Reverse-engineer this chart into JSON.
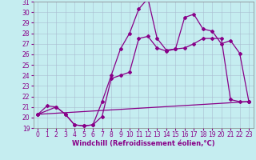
{
  "xlabel": "Windchill (Refroidissement éolien,°C)",
  "xlim": [
    -0.5,
    23.5
  ],
  "ylim": [
    19,
    31
  ],
  "xticks": [
    0,
    1,
    2,
    3,
    4,
    5,
    6,
    7,
    8,
    9,
    10,
    11,
    12,
    13,
    14,
    15,
    16,
    17,
    18,
    19,
    20,
    21,
    22,
    23
  ],
  "yticks": [
    19,
    20,
    21,
    22,
    23,
    24,
    25,
    26,
    27,
    28,
    29,
    30,
    31
  ],
  "bg_color": "#c5edf0",
  "grid_color": "#aabbd0",
  "line_color": "#880088",
  "line1_x": [
    0,
    1,
    2,
    3,
    4,
    5,
    6,
    7,
    8,
    9,
    10,
    11,
    12,
    13,
    14,
    15,
    16,
    17,
    18,
    19,
    20,
    21,
    22,
    23
  ],
  "line1_y": [
    20.3,
    21.1,
    21.0,
    20.3,
    19.3,
    19.2,
    19.3,
    21.5,
    24.0,
    26.5,
    28.0,
    30.3,
    31.3,
    27.5,
    26.4,
    26.5,
    29.5,
    29.8,
    28.4,
    28.2,
    27.0,
    27.3,
    26.1,
    21.5
  ],
  "line2_x": [
    0,
    2,
    3,
    4,
    5,
    6,
    7,
    8,
    9,
    10,
    11,
    12,
    13,
    14,
    15,
    16,
    17,
    18,
    19,
    20,
    21,
    22,
    23
  ],
  "line2_y": [
    20.3,
    21.0,
    20.3,
    19.3,
    19.2,
    19.3,
    20.1,
    23.7,
    24.0,
    24.3,
    27.5,
    27.7,
    26.6,
    26.3,
    26.5,
    26.6,
    27.0,
    27.5,
    27.5,
    27.5,
    21.7,
    21.5,
    21.5
  ],
  "line3_x": [
    0,
    23
  ],
  "line3_y": [
    20.3,
    21.5
  ],
  "xlabel_fontsize": 6,
  "tick_fontsize": 5.5
}
